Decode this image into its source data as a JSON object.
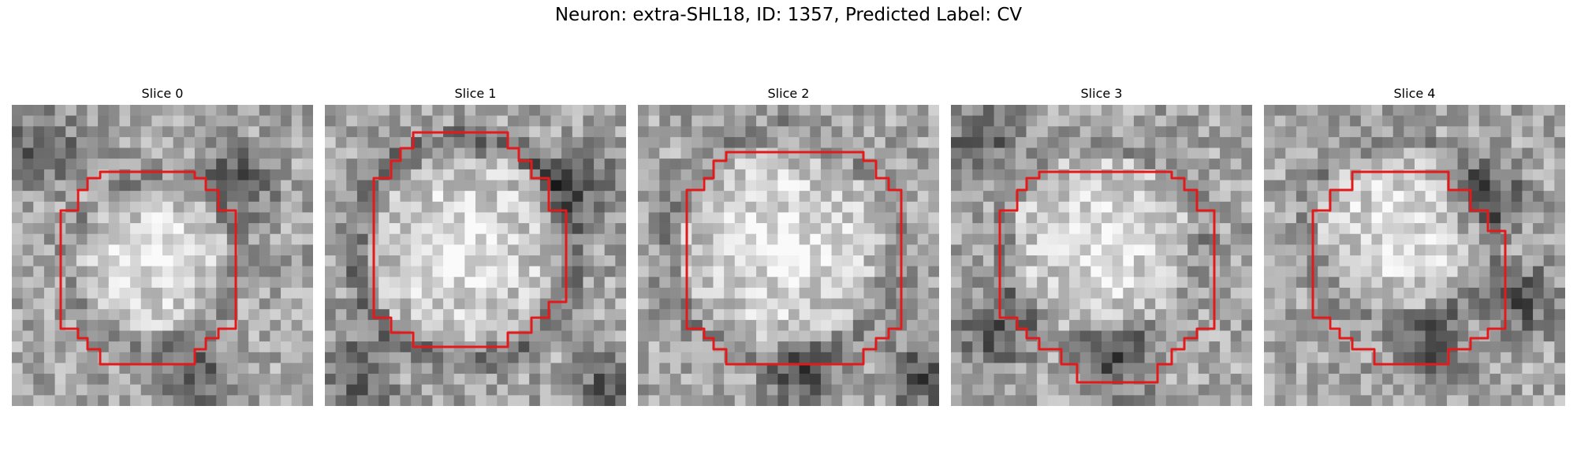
{
  "figure": {
    "title": "Neuron: extra-SHL18, ID: 1357, Predicted Label: CV"
  },
  "panels": [
    {
      "title": "Slice 0",
      "seed": 11,
      "blob": [
        0.47,
        0.52,
        0.24,
        0.08
      ],
      "dark": [
        [
          0.1,
          0.15
        ],
        [
          0.6,
          0.9
        ],
        [
          0.75,
          0.25
        ]
      ]
    },
    {
      "title": "Slice 1",
      "seed": 23,
      "blob": [
        0.46,
        0.48,
        0.32,
        0.22
      ],
      "dark": [
        [
          0.85,
          0.25
        ],
        [
          0.95,
          0.95
        ],
        [
          0.1,
          0.9
        ]
      ]
    },
    {
      "title": "Slice 2",
      "seed": 37,
      "blob": [
        0.48,
        0.47,
        0.34,
        0.14
      ],
      "dark": [
        [
          0.95,
          0.9
        ],
        [
          0.55,
          0.9
        ]
      ]
    },
    {
      "title": "Slice 3",
      "seed": 41,
      "blob": [
        0.5,
        0.46,
        0.3,
        0.1
      ],
      "dark": [
        [
          0.15,
          0.75
        ],
        [
          0.55,
          0.85
        ],
        [
          0.1,
          0.1
        ]
      ]
    },
    {
      "title": "Slice 4",
      "seed": 53,
      "blob": [
        0.45,
        0.42,
        0.27,
        0.08
      ],
      "dark": [
        [
          0.75,
          0.3
        ],
        [
          0.55,
          0.8
        ],
        [
          0.85,
          0.65
        ]
      ]
    }
  ],
  "colors": {
    "contour": "#e31a1c",
    "colormap": "gray"
  }
}
